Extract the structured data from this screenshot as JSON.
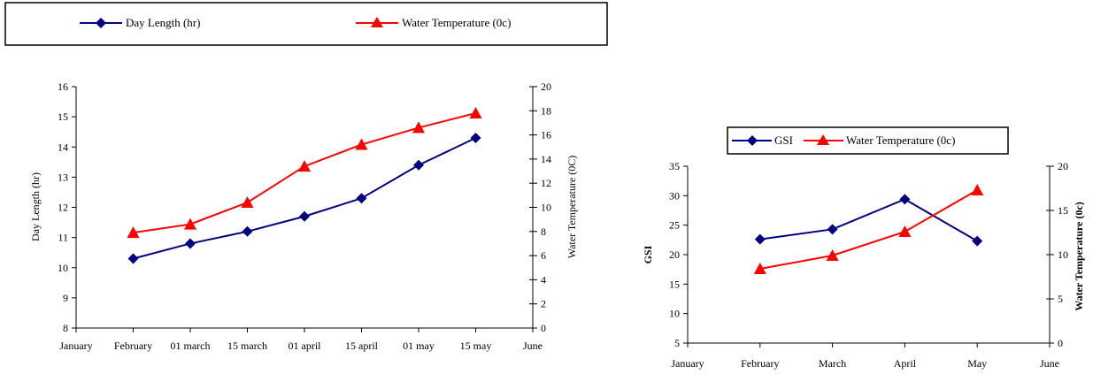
{
  "chart_data": [
    {
      "type": "line",
      "title": "",
      "categories": [
        "January",
        "February",
        "01 march",
        "15 march",
        "01 april",
        "15 april",
        "01 may",
        "15 may",
        "June"
      ],
      "series": [
        {
          "name": "Day Length (hr)",
          "axis": "left",
          "marker": "diamond",
          "color": "#000080",
          "values": [
            null,
            10.3,
            10.8,
            11.2,
            11.7,
            12.3,
            13.4,
            14.3,
            null
          ]
        },
        {
          "name": "Water Temperature (0c)",
          "axis": "right",
          "marker": "triangle",
          "color": "#ff0000",
          "values": [
            null,
            7.9,
            8.6,
            10.4,
            13.4,
            15.2,
            16.6,
            17.8,
            null
          ]
        }
      ],
      "ylabel": "Day Length (hr)",
      "ylim": [
        8,
        16
      ],
      "yticks": [
        "8",
        "9",
        "10",
        "11",
        "12",
        "13",
        "14",
        "15",
        "16"
      ],
      "y2label": "Water Temperature (0C)",
      "y2lim": [
        0,
        20
      ],
      "y2ticks": [
        "0",
        "2",
        "4",
        "6",
        "8",
        "10",
        "12",
        "14",
        "16",
        "18",
        "20"
      ],
      "grid": false,
      "legend_position": "top"
    },
    {
      "type": "line",
      "title": "",
      "categories": [
        "January",
        "February",
        "March",
        "April",
        "May",
        "June"
      ],
      "series": [
        {
          "name": "GSI",
          "axis": "left",
          "marker": "diamond",
          "color": "#000080",
          "values": [
            null,
            22.6,
            24.3,
            29.4,
            22.3,
            null
          ]
        },
        {
          "name": "Water Temperature (0c)",
          "axis": "right",
          "marker": "triangle",
          "color": "#ff0000",
          "values": [
            null,
            8.4,
            9.9,
            12.6,
            17.3,
            null
          ]
        }
      ],
      "ylabel": "GSI",
      "ylim": [
        5,
        35
      ],
      "yticks": [
        "5",
        "10",
        "15",
        "20",
        "25",
        "30",
        "35"
      ],
      "y2label": "Water Temperature (0c)",
      "y2lim": [
        0,
        20
      ],
      "y2ticks": [
        "0",
        "5",
        "10",
        "15",
        "20"
      ],
      "grid": false,
      "legend_position": "top"
    }
  ]
}
